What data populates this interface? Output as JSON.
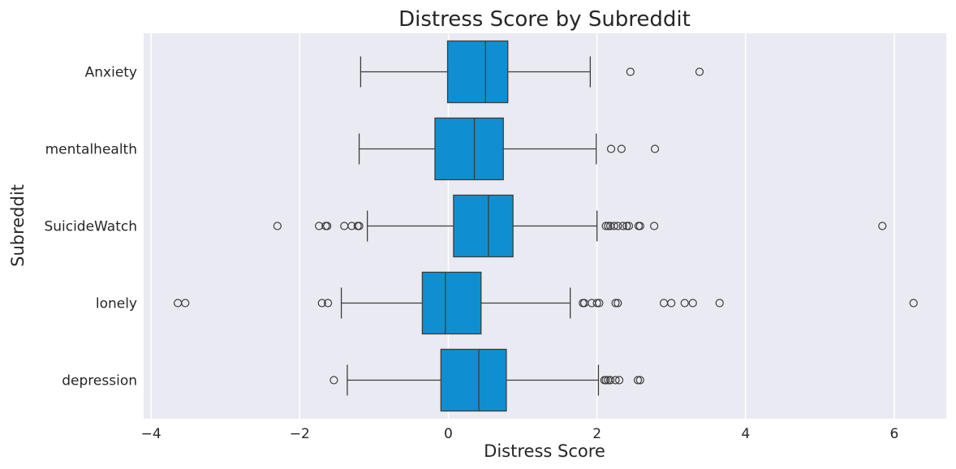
{
  "chart_data": {
    "type": "box",
    "orientation": "horizontal",
    "title": "Distress Score by Subreddit",
    "xlabel": "Distress Score",
    "ylabel": "Subreddit",
    "xlim": [
      -4.1,
      6.7
    ],
    "xticks": [
      -4,
      -2,
      0,
      2,
      4,
      6
    ],
    "xtick_labels": [
      "−4",
      "−2",
      "0",
      "2",
      "4",
      "6"
    ],
    "grid": true,
    "box_color": "#0f8fd1",
    "line_color": "#3d3d3d",
    "background_color": "#eaeaf2",
    "categories": [
      "Anxiety",
      "mentalhealth",
      "SuicideWatch",
      "lonely",
      "depression"
    ],
    "boxes": [
      {
        "category": "Anxiety",
        "whisker_low": -1.18,
        "q1": -0.01,
        "median": 0.5,
        "q3": 0.8,
        "whisker_high": 1.91,
        "outliers": [
          2.45,
          3.38
        ]
      },
      {
        "category": "mentalhealth",
        "whisker_low": -1.2,
        "q1": -0.18,
        "median": 0.35,
        "q3": 0.74,
        "whisker_high": 1.99,
        "outliers": [
          2.19,
          2.33,
          2.78
        ]
      },
      {
        "category": "SuicideWatch",
        "whisker_low": -1.09,
        "q1": 0.07,
        "median": 0.54,
        "q3": 0.87,
        "whisker_high": 2.0,
        "outliers": [
          -2.3,
          -1.74,
          -1.65,
          -1.63,
          -1.4,
          -1.3,
          -1.22,
          -1.2,
          2.12,
          2.15,
          2.18,
          2.23,
          2.28,
          2.35,
          2.4,
          2.43,
          2.56,
          2.58,
          2.77,
          5.84
        ]
      },
      {
        "category": "lonely",
        "whisker_low": -1.44,
        "q1": -0.35,
        "median": -0.04,
        "q3": 0.44,
        "whisker_high": 1.64,
        "outliers": [
          -3.64,
          -3.54,
          -1.7,
          -1.62,
          1.81,
          1.83,
          1.93,
          2.0,
          2.03,
          2.25,
          2.28,
          2.9,
          3.0,
          3.18,
          3.29,
          3.65,
          6.26
        ]
      },
      {
        "category": "depression",
        "whisker_low": -1.36,
        "q1": -0.1,
        "median": 0.41,
        "q3": 0.78,
        "whisker_high": 2.02,
        "outliers": [
          -1.54,
          2.1,
          2.12,
          2.15,
          2.18,
          2.25,
          2.3,
          2.55,
          2.58
        ]
      }
    ]
  }
}
